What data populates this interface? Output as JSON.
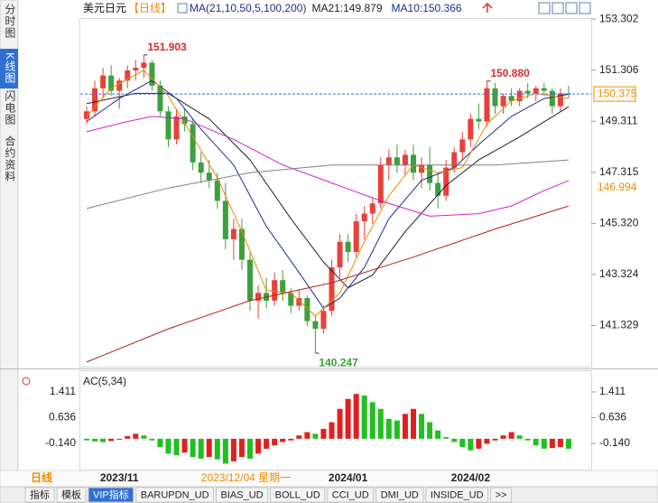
{
  "ui": {
    "sidebar_tabs": [
      "分时图",
      "K线图",
      "闪电图",
      "合约资料"
    ],
    "bottom_tabs": [
      "指标",
      "模板",
      "VIP指标",
      "BARUPDN_UD",
      "BIAS_UD",
      "BOLL_UD",
      "CCI_UD",
      "DMI_UD",
      "INSIDE_UD",
      ">>"
    ],
    "period": "日线",
    "cursor_date": "2023/12/04 星期一",
    "cursor_index": 19.5
  },
  "chart_data": [
    {
      "type": "candlestick",
      "title": "美元日元",
      "subtitle": "【日线】",
      "indicator": "MA(21,10,50,5,100,200)",
      "up_color": "#e8403a",
      "down_color": "#3ca03c",
      "categories": [
        null,
        null,
        null,
        null,
        "2023/11",
        null,
        null,
        null,
        null,
        null,
        null,
        null,
        null,
        null,
        null,
        null,
        null,
        null,
        null,
        null,
        null,
        null,
        null,
        null,
        null,
        null,
        null,
        null,
        null,
        null,
        null,
        null,
        "2024/01",
        null,
        null,
        null,
        null,
        null,
        null,
        null,
        null,
        null,
        null,
        null,
        null,
        null,
        null,
        "2024/02",
        null,
        null,
        null,
        null,
        null,
        null,
        null,
        null,
        null,
        null,
        null,
        null
      ],
      "open": [
        149.4,
        149.7,
        150.6,
        151.1,
        150.5,
        150.9,
        151.3,
        151.4,
        151.6,
        150.7,
        149.7,
        148.6,
        149.5,
        149.2,
        147.7,
        147.3,
        147.0,
        146.2,
        144.7,
        145.1,
        143.9,
        142.3,
        142.6,
        142.3,
        143.1,
        142.6,
        142.1,
        142.4,
        141.5,
        141.2,
        141.9,
        143.6,
        144.6,
        144.2,
        145.4,
        145.7,
        146.1,
        147.6,
        147.9,
        147.6,
        148.0,
        147.3,
        147.6,
        146.9,
        146.4,
        147.5,
        148.1,
        148.6,
        149.4,
        149.3,
        150.6,
        149.9,
        150.3,
        150.1,
        150.5,
        150.4,
        150.6,
        150.5,
        149.9,
        150.4
      ],
      "high": [
        149.9,
        150.9,
        151.4,
        151.5,
        151.0,
        151.5,
        151.7,
        151.903,
        151.7,
        150.9,
        149.9,
        149.8,
        149.8,
        149.4,
        148.1,
        147.8,
        147.3,
        146.9,
        145.5,
        145.5,
        144.2,
        142.9,
        143.2,
        143.4,
        143.5,
        142.8,
        142.7,
        142.5,
        141.7,
        142.1,
        143.9,
        144.9,
        144.9,
        145.7,
        146.0,
        146.3,
        147.9,
        148.2,
        148.4,
        148.2,
        148.4,
        147.9,
        148.3,
        147.3,
        147.8,
        148.3,
        148.9,
        149.6,
        150.0,
        150.88,
        150.8,
        150.4,
        150.6,
        150.6,
        150.8,
        150.7,
        150.8,
        150.6,
        150.6,
        150.7
      ],
      "low": [
        149.2,
        149.5,
        150.2,
        150.3,
        149.8,
        150.6,
        150.9,
        151.0,
        150.5,
        149.5,
        148.3,
        148.4,
        148.9,
        147.4,
        146.9,
        146.7,
        145.9,
        144.3,
        143.9,
        143.5,
        141.9,
        141.6,
        142.0,
        142.1,
        142.3,
        141.8,
        141.9,
        141.3,
        140.247,
        141.0,
        141.7,
        143.2,
        143.8,
        144.0,
        144.7,
        145.3,
        145.9,
        147.0,
        147.3,
        147.2,
        147.0,
        146.7,
        146.6,
        145.9,
        146.2,
        147.3,
        147.8,
        148.3,
        149.0,
        149.1,
        149.6,
        149.6,
        149.9,
        149.9,
        150.2,
        150.1,
        150.3,
        149.6,
        149.7,
        150.2
      ],
      "close": [
        149.7,
        150.6,
        151.1,
        150.5,
        150.9,
        151.3,
        151.4,
        151.6,
        150.7,
        149.7,
        148.6,
        149.5,
        149.2,
        147.7,
        147.3,
        147.0,
        146.2,
        144.7,
        145.1,
        143.9,
        142.3,
        142.6,
        142.3,
        143.1,
        142.6,
        142.1,
        142.4,
        141.5,
        141.2,
        141.9,
        143.6,
        144.6,
        144.2,
        145.4,
        145.7,
        146.1,
        147.6,
        147.9,
        147.6,
        148.0,
        147.3,
        147.6,
        146.9,
        146.4,
        147.5,
        148.1,
        148.6,
        149.4,
        149.3,
        150.6,
        149.9,
        150.3,
        150.1,
        150.5,
        150.4,
        150.6,
        150.5,
        149.9,
        150.4,
        150.375
      ],
      "series": [
        {
          "name": "MA21:149.879",
          "color": "#222222",
          "x": [
            0,
            6,
            10,
            15,
            20,
            25,
            29,
            32,
            35,
            39,
            44,
            48,
            53,
            59
          ],
          "values": [
            150.0,
            150.4,
            150.4,
            149.4,
            147.8,
            145.5,
            143.8,
            142.8,
            143.3,
            145.0,
            146.8,
            147.8,
            148.7,
            149.879
          ]
        },
        {
          "name": "MA10:150.366",
          "color": "#1c2d8f",
          "x": [
            0,
            4,
            8,
            11,
            14,
            18,
            22,
            26,
            29,
            31,
            34,
            37,
            41,
            45,
            48,
            52,
            56,
            59
          ],
          "values": [
            149.3,
            150.2,
            150.9,
            150.2,
            149.0,
            147.6,
            145.2,
            143.4,
            142.0,
            142.4,
            143.6,
            145.5,
            147.0,
            147.5,
            148.4,
            149.5,
            150.2,
            150.366
          ]
        },
        {
          "color": "#f08a00",
          "x": [
            0,
            3,
            7,
            10,
            13,
            16,
            19,
            22,
            25,
            28,
            31,
            34,
            37,
            40,
            43,
            46,
            49,
            52,
            55,
            59
          ],
          "values": [
            149.5,
            150.6,
            151.3,
            150.3,
            148.7,
            147.1,
            145.0,
            142.7,
            142.6,
            141.7,
            142.6,
            144.6,
            146.4,
            147.6,
            147.3,
            147.5,
            149.2,
            150.1,
            150.4,
            150.2
          ]
        },
        {
          "color": "#d020c8",
          "x": [
            0,
            5,
            8,
            12,
            18,
            24,
            30,
            36,
            42,
            48,
            52,
            56,
            59
          ],
          "values": [
            148.9,
            149.3,
            149.5,
            149.4,
            148.6,
            147.6,
            146.9,
            146.2,
            145.6,
            145.7,
            146.0,
            146.6,
            146.994
          ]
        },
        {
          "color": "#808080",
          "x": [
            0,
            10,
            20,
            30,
            40,
            50,
            59
          ],
          "values": [
            145.9,
            146.7,
            147.3,
            147.6,
            147.6,
            147.6,
            147.8
          ]
        },
        {
          "color": "#b02020",
          "x": [
            0,
            10,
            20,
            30,
            40,
            50,
            59
          ],
          "values": [
            139.9,
            141.2,
            142.3,
            143.0,
            144.0,
            145.1,
            146.0
          ]
        }
      ],
      "annotations": [
        {
          "value": 151.903,
          "index": 7,
          "color": "#d03030"
        },
        {
          "value": 140.247,
          "index": 28,
          "color": "#3ca03c"
        },
        {
          "value": 150.88,
          "label": "150.880",
          "index": 49,
          "color": "#d03030"
        }
      ],
      "last_price": 150.375,
      "ma_mark": 146.994,
      "ylim": [
        139.756,
        153.767
      ],
      "yticks": [
        153.302,
        151.306,
        149.311,
        147.315,
        {
          "value": 145.32,
          "label": "145.320"
        },
        143.324,
        141.329
      ]
    },
    {
      "type": "bar",
      "title": "AC(5,34)",
      "up_color": "#e02020",
      "down_color": "#20c020",
      "values": [
        -0.05,
        -0.08,
        -0.1,
        -0.07,
        -0.02,
        0.08,
        0.15,
        0.1,
        -0.05,
        -0.25,
        -0.45,
        -0.5,
        -0.42,
        -0.55,
        -0.6,
        -0.55,
        -0.62,
        -0.75,
        -0.68,
        -0.55,
        -0.6,
        -0.45,
        -0.3,
        -0.2,
        -0.1,
        -0.05,
        0.1,
        0.2,
        0.15,
        0.3,
        0.5,
        0.9,
        1.2,
        1.35,
        1.3,
        1.1,
        0.9,
        0.6,
        0.55,
        0.75,
        0.9,
        0.75,
        0.5,
        0.25,
        0.05,
        -0.1,
        -0.25,
        -0.35,
        -0.3,
        -0.15,
        -0.05,
        0.1,
        0.2,
        0.1,
        -0.05,
        -0.2,
        -0.3,
        -0.28,
        -0.25,
        -0.3
      ],
      "ylim": [
        -0.929,
        1.846
      ],
      "yticks": [
        1.411,
        0.636,
        {
          "value": -0.14,
          "label": "-0.140"
        }
      ]
    }
  ]
}
